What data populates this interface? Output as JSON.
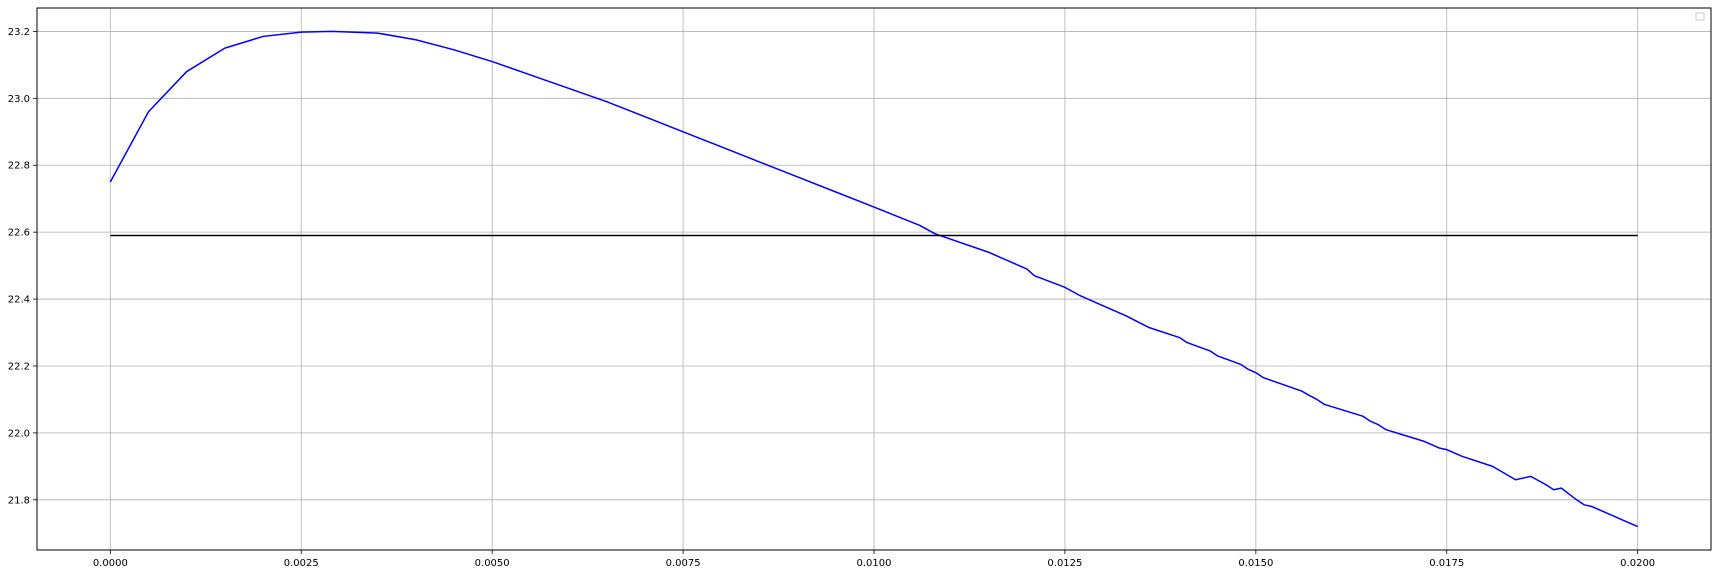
{
  "chart_data": {
    "type": "line",
    "title": "",
    "xlabel": "",
    "ylabel": "",
    "xlim": [
      -0.00096,
      0.02096
    ],
    "ylim": [
      21.65,
      23.27
    ],
    "x_ticks": [
      0.0,
      0.0025,
      0.005,
      0.0075,
      0.01,
      0.0125,
      0.015,
      0.0175,
      0.02
    ],
    "x_tick_labels": [
      "0.0000",
      "0.0025",
      "0.0050",
      "0.0075",
      "0.0100",
      "0.0125",
      "0.0150",
      "0.0175",
      "0.0200"
    ],
    "y_ticks": [
      21.8,
      22.0,
      22.2,
      22.4,
      22.6,
      22.8,
      23.0,
      23.2
    ],
    "y_tick_labels": [
      "21.8",
      "22.0",
      "22.2",
      "22.4",
      "22.6",
      "22.8",
      "23.0",
      "23.2"
    ],
    "grid": true,
    "legend": "top-right (empty)",
    "series": [
      {
        "color": "#0000ff",
        "x": [
          0.0,
          0.0005,
          0.001,
          0.0015,
          0.002,
          0.0025,
          0.0029,
          0.0035,
          0.004,
          0.0045,
          0.005,
          0.0055,
          0.006,
          0.0065,
          0.007,
          0.0075,
          0.008,
          0.0085,
          0.009,
          0.0095,
          0.01,
          0.0106,
          0.0108,
          0.0115,
          0.0117,
          0.012,
          0.0121,
          0.0125,
          0.0127,
          0.0128,
          0.0133,
          0.0136,
          0.014,
          0.0141,
          0.0144,
          0.0145,
          0.0148,
          0.0149,
          0.015,
          0.0151,
          0.0156,
          0.0157,
          0.0158,
          0.0159,
          0.0164,
          0.0165,
          0.0166,
          0.0167,
          0.0172,
          0.0173,
          0.0174,
          0.0175,
          0.0176,
          0.0177,
          0.0181,
          0.0184,
          0.0185,
          0.0186,
          0.0188,
          0.0189,
          0.019,
          0.0192,
          0.0193,
          0.0194,
          0.0198,
          0.02
        ],
        "y": [
          22.75,
          22.96,
          23.08,
          23.15,
          23.185,
          23.198,
          23.2,
          23.195,
          23.175,
          23.145,
          23.11,
          23.07,
          23.03,
          22.99,
          22.945,
          22.9,
          22.855,
          22.81,
          22.765,
          22.72,
          22.675,
          22.62,
          22.595,
          22.54,
          22.52,
          22.49,
          22.47,
          22.435,
          22.41,
          22.4,
          22.35,
          22.315,
          22.285,
          22.27,
          22.245,
          22.23,
          22.205,
          22.19,
          22.18,
          22.165,
          22.125,
          22.112,
          22.1,
          22.085,
          22.05,
          22.035,
          22.025,
          22.01,
          21.975,
          21.965,
          21.955,
          21.95,
          21.94,
          21.93,
          21.9,
          21.86,
          21.865,
          21.87,
          21.845,
          21.83,
          21.835,
          21.8,
          21.785,
          21.78,
          21.74,
          21.72
        ]
      },
      {
        "color": "#000000",
        "x": [
          0.0,
          0.02
        ],
        "y": [
          22.59,
          22.59
        ]
      }
    ]
  }
}
